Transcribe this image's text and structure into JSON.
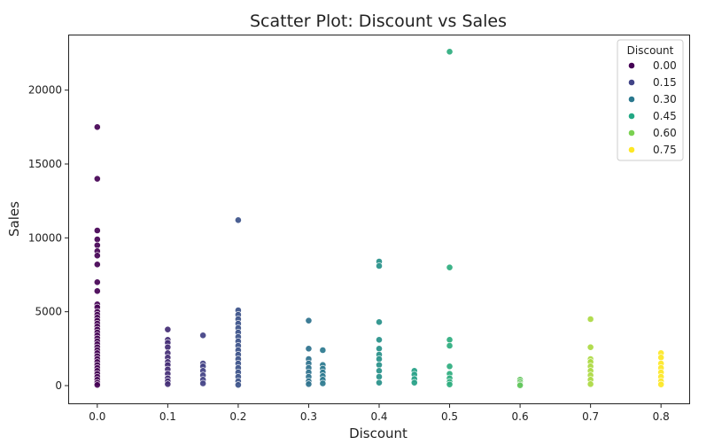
{
  "chart_data": {
    "type": "scatter",
    "title": "Scatter Plot: Discount vs Sales",
    "xlabel": "Discount",
    "ylabel": "Sales",
    "xlim": [
      -0.04,
      0.84
    ],
    "ylim": [
      -1200,
      23700
    ],
    "xticks": [
      "0.0",
      "0.1",
      "0.2",
      "0.3",
      "0.4",
      "0.5",
      "0.6",
      "0.7",
      "0.8"
    ],
    "yticks": [
      "0",
      "5000",
      "10000",
      "15000",
      "20000"
    ],
    "grid": false,
    "legend": {
      "title": "Discount",
      "placement": "top-right",
      "entries": [
        {
          "label": "0.00",
          "color": "#440154"
        },
        {
          "label": "0.15",
          "color": "#414487"
        },
        {
          "label": "0.30",
          "color": "#2a788e"
        },
        {
          "label": "0.45",
          "color": "#22a884"
        },
        {
          "label": "0.60",
          "color": "#7ad151"
        },
        {
          "label": "0.75",
          "color": "#fde725"
        }
      ]
    },
    "color_scale": "viridis",
    "color_range": [
      0,
      0.8
    ],
    "points": [
      {
        "x": 0.0,
        "y": 17500
      },
      {
        "x": 0.0,
        "y": 14000
      },
      {
        "x": 0.0,
        "y": 10500
      },
      {
        "x": 0.0,
        "y": 9900
      },
      {
        "x": 0.0,
        "y": 9500
      },
      {
        "x": 0.0,
        "y": 9100
      },
      {
        "x": 0.0,
        "y": 8800
      },
      {
        "x": 0.0,
        "y": 8200
      },
      {
        "x": 0.0,
        "y": 7000
      },
      {
        "x": 0.0,
        "y": 6400
      },
      {
        "x": 0.0,
        "y": 5500
      },
      {
        "x": 0.0,
        "y": 5300
      },
      {
        "x": 0.0,
        "y": 5000
      },
      {
        "x": 0.0,
        "y": 4800
      },
      {
        "x": 0.0,
        "y": 4600
      },
      {
        "x": 0.0,
        "y": 4400
      },
      {
        "x": 0.0,
        "y": 4200
      },
      {
        "x": 0.0,
        "y": 4000
      },
      {
        "x": 0.0,
        "y": 3800
      },
      {
        "x": 0.0,
        "y": 3600
      },
      {
        "x": 0.0,
        "y": 3400
      },
      {
        "x": 0.0,
        "y": 3200
      },
      {
        "x": 0.0,
        "y": 3000
      },
      {
        "x": 0.0,
        "y": 2800
      },
      {
        "x": 0.0,
        "y": 2600
      },
      {
        "x": 0.0,
        "y": 2400
      },
      {
        "x": 0.0,
        "y": 2200
      },
      {
        "x": 0.0,
        "y": 2000
      },
      {
        "x": 0.0,
        "y": 1800
      },
      {
        "x": 0.0,
        "y": 1600
      },
      {
        "x": 0.0,
        "y": 1400
      },
      {
        "x": 0.0,
        "y": 1200
      },
      {
        "x": 0.0,
        "y": 1000
      },
      {
        "x": 0.0,
        "y": 800
      },
      {
        "x": 0.0,
        "y": 600
      },
      {
        "x": 0.0,
        "y": 400
      },
      {
        "x": 0.0,
        "y": 200
      },
      {
        "x": 0.0,
        "y": 50
      },
      {
        "x": 0.1,
        "y": 3800
      },
      {
        "x": 0.1,
        "y": 3100
      },
      {
        "x": 0.1,
        "y": 2900
      },
      {
        "x": 0.1,
        "y": 2600
      },
      {
        "x": 0.1,
        "y": 2200
      },
      {
        "x": 0.1,
        "y": 1900
      },
      {
        "x": 0.1,
        "y": 1600
      },
      {
        "x": 0.1,
        "y": 1400
      },
      {
        "x": 0.1,
        "y": 1100
      },
      {
        "x": 0.1,
        "y": 800
      },
      {
        "x": 0.1,
        "y": 500
      },
      {
        "x": 0.1,
        "y": 300
      },
      {
        "x": 0.1,
        "y": 100
      },
      {
        "x": 0.15,
        "y": 3400
      },
      {
        "x": 0.15,
        "y": 1500
      },
      {
        "x": 0.15,
        "y": 1300
      },
      {
        "x": 0.15,
        "y": 1000
      },
      {
        "x": 0.15,
        "y": 700
      },
      {
        "x": 0.15,
        "y": 400
      },
      {
        "x": 0.15,
        "y": 150
      },
      {
        "x": 0.2,
        "y": 11200
      },
      {
        "x": 0.2,
        "y": 5100
      },
      {
        "x": 0.2,
        "y": 4800
      },
      {
        "x": 0.2,
        "y": 4500
      },
      {
        "x": 0.2,
        "y": 4200
      },
      {
        "x": 0.2,
        "y": 3900
      },
      {
        "x": 0.2,
        "y": 3600
      },
      {
        "x": 0.2,
        "y": 3300
      },
      {
        "x": 0.2,
        "y": 3000
      },
      {
        "x": 0.2,
        "y": 2700
      },
      {
        "x": 0.2,
        "y": 2400
      },
      {
        "x": 0.2,
        "y": 2100
      },
      {
        "x": 0.2,
        "y": 1800
      },
      {
        "x": 0.2,
        "y": 1500
      },
      {
        "x": 0.2,
        "y": 1200
      },
      {
        "x": 0.2,
        "y": 900
      },
      {
        "x": 0.2,
        "y": 600
      },
      {
        "x": 0.2,
        "y": 300
      },
      {
        "x": 0.2,
        "y": 50
      },
      {
        "x": 0.3,
        "y": 4400
      },
      {
        "x": 0.3,
        "y": 2500
      },
      {
        "x": 0.3,
        "y": 1800
      },
      {
        "x": 0.3,
        "y": 1500
      },
      {
        "x": 0.3,
        "y": 1200
      },
      {
        "x": 0.3,
        "y": 900
      },
      {
        "x": 0.3,
        "y": 600
      },
      {
        "x": 0.3,
        "y": 300
      },
      {
        "x": 0.3,
        "y": 100
      },
      {
        "x": 0.32,
        "y": 2400
      },
      {
        "x": 0.32,
        "y": 1400
      },
      {
        "x": 0.32,
        "y": 1150
      },
      {
        "x": 0.32,
        "y": 900
      },
      {
        "x": 0.32,
        "y": 650
      },
      {
        "x": 0.32,
        "y": 400
      },
      {
        "x": 0.32,
        "y": 150
      },
      {
        "x": 0.4,
        "y": 8400
      },
      {
        "x": 0.4,
        "y": 8100
      },
      {
        "x": 0.4,
        "y": 4300
      },
      {
        "x": 0.4,
        "y": 3100
      },
      {
        "x": 0.4,
        "y": 2500
      },
      {
        "x": 0.4,
        "y": 2100
      },
      {
        "x": 0.4,
        "y": 1800
      },
      {
        "x": 0.4,
        "y": 1400
      },
      {
        "x": 0.4,
        "y": 1000
      },
      {
        "x": 0.4,
        "y": 600
      },
      {
        "x": 0.4,
        "y": 200
      },
      {
        "x": 0.45,
        "y": 1000
      },
      {
        "x": 0.45,
        "y": 750
      },
      {
        "x": 0.45,
        "y": 450
      },
      {
        "x": 0.45,
        "y": 200
      },
      {
        "x": 0.5,
        "y": 22600
      },
      {
        "x": 0.5,
        "y": 8000
      },
      {
        "x": 0.5,
        "y": 3100
      },
      {
        "x": 0.5,
        "y": 2700
      },
      {
        "x": 0.5,
        "y": 1300
      },
      {
        "x": 0.5,
        "y": 800
      },
      {
        "x": 0.5,
        "y": 500
      },
      {
        "x": 0.5,
        "y": 250
      },
      {
        "x": 0.5,
        "y": 80
      },
      {
        "x": 0.6,
        "y": 400
      },
      {
        "x": 0.6,
        "y": 250
      },
      {
        "x": 0.6,
        "y": 100
      },
      {
        "x": 0.6,
        "y": 20
      },
      {
        "x": 0.7,
        "y": 4500
      },
      {
        "x": 0.7,
        "y": 2600
      },
      {
        "x": 0.7,
        "y": 1800
      },
      {
        "x": 0.7,
        "y": 1600
      },
      {
        "x": 0.7,
        "y": 1300
      },
      {
        "x": 0.7,
        "y": 1000
      },
      {
        "x": 0.7,
        "y": 700
      },
      {
        "x": 0.7,
        "y": 400
      },
      {
        "x": 0.7,
        "y": 100
      },
      {
        "x": 0.8,
        "y": 2200
      },
      {
        "x": 0.8,
        "y": 1900
      },
      {
        "x": 0.8,
        "y": 1500
      },
      {
        "x": 0.8,
        "y": 1200
      },
      {
        "x": 0.8,
        "y": 900
      },
      {
        "x": 0.8,
        "y": 600
      },
      {
        "x": 0.8,
        "y": 300
      },
      {
        "x": 0.8,
        "y": 80
      }
    ]
  }
}
